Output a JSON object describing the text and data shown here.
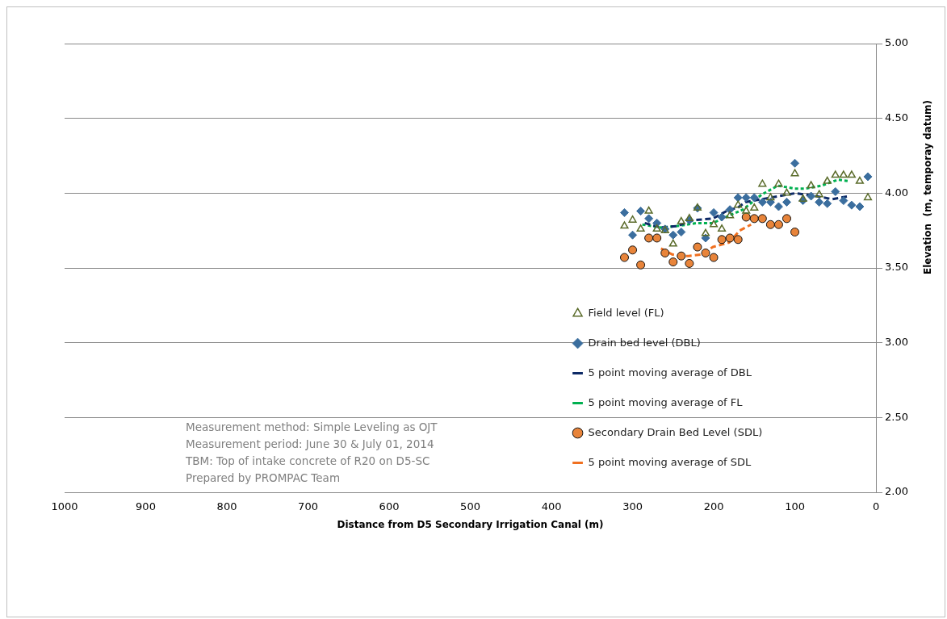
{
  "chart_data": {
    "type": "scatter",
    "xlabel": "Distance from D5 Secondary Irrigation Canal (m)",
    "ylabel": "Elevation  (m, temporay datum)",
    "xlim": [
      1000,
      0
    ],
    "xticks": [
      1000,
      900,
      800,
      700,
      600,
      500,
      400,
      300,
      200,
      100,
      0
    ],
    "ylim": [
      2,
      5
    ],
    "yticks": [
      {
        "value": 2,
        "label": "2.00"
      },
      {
        "value": 2.5,
        "label": "2.50"
      },
      {
        "value": 3,
        "label": "3.00"
      },
      {
        "value": 3.5,
        "label": "3.50"
      },
      {
        "value": 4,
        "label": "4.00"
      },
      {
        "value": 4.5,
        "label": "4.50"
      },
      {
        "value": 5,
        "label": "5.00"
      }
    ],
    "grid": "y",
    "legend": "bottom right",
    "annotations": [
      "Measurement method: Simple Leveling as OJT",
      "Measurement period: June 30 & July 01, 2014",
      "TBM: Top of intake concrete of R20 on D5-SC",
      "Prepared by PROMPAC Team"
    ],
    "series": [
      {
        "name": "Drain bed level (DBL)",
        "type": "scatter",
        "marker": "diamond",
        "color": "#3b6e9e",
        "x": [
          310,
          300,
          290,
          280,
          270,
          260,
          250,
          240,
          230,
          220,
          210,
          200,
          190,
          180,
          170,
          160,
          150,
          140,
          130,
          120,
          110,
          100,
          90,
          80,
          70,
          60,
          50,
          40,
          30,
          20,
          10
        ],
        "values": [
          3.87,
          3.72,
          3.88,
          3.83,
          3.8,
          3.76,
          3.72,
          3.74,
          3.82,
          3.9,
          3.7,
          3.87,
          3.84,
          3.89,
          3.97,
          3.97,
          3.97,
          3.94,
          3.94,
          3.91,
          3.94,
          4.2,
          3.95,
          3.98,
          3.94,
          3.93,
          4.01,
          3.95,
          3.92,
          3.91,
          4.11
        ]
      },
      {
        "name": "Field level (FL)",
        "type": "scatter",
        "marker": "triangle",
        "color": "#5a6b2a",
        "x": [
          310,
          300,
          290,
          280,
          270,
          260,
          250,
          240,
          230,
          220,
          210,
          200,
          190,
          180,
          170,
          160,
          150,
          140,
          130,
          120,
          110,
          100,
          90,
          80,
          70,
          60,
          50,
          40,
          30,
          20,
          10
        ],
        "values": [
          3.78,
          3.82,
          3.76,
          3.88,
          3.76,
          3.75,
          3.66,
          3.81,
          3.83,
          3.9,
          3.73,
          3.79,
          3.76,
          3.85,
          3.92,
          3.88,
          3.9,
          4.06,
          3.97,
          4.06,
          4.0,
          4.13,
          3.96,
          4.05,
          3.99,
          4.08,
          4.12,
          4.12,
          4.12,
          4.08,
          3.97
        ]
      },
      {
        "name": "5 point moving average of DBL",
        "type": "line",
        "line_style": "dashed",
        "color": "#0d2a66",
        "x": [
          285,
          265,
          245,
          225,
          201,
          181,
          171,
          161,
          120,
          99,
          74,
          54,
          33
        ],
        "values": [
          3.8,
          3.77,
          3.78,
          3.82,
          3.83,
          3.89,
          3.9,
          3.94,
          3.98,
          4.0,
          3.98,
          3.96,
          3.98
        ]
      },
      {
        "name": "5 point moving average of FL",
        "type": "line",
        "line_style": "dotted",
        "color": "#00b050",
        "x": [
          288,
          265,
          245,
          221,
          201,
          181,
          164,
          141,
          121,
          100,
          87,
          67,
          47,
          32
        ],
        "values": [
          3.79,
          3.77,
          3.78,
          3.8,
          3.8,
          3.85,
          3.89,
          3.99,
          4.05,
          4.03,
          4.03,
          4.05,
          4.09,
          4.08
        ]
      },
      {
        "name": "Secondary Drain Bed Level (SDL)",
        "type": "scatter",
        "marker": "circle",
        "color": "#e8843a",
        "x": [
          310,
          300,
          290,
          280,
          270,
          260,
          250,
          240,
          230,
          220,
          210,
          200,
          190,
          180,
          170,
          160,
          150,
          140,
          130,
          120,
          110,
          100
        ],
        "values": [
          3.57,
          3.62,
          3.52,
          3.7,
          3.7,
          3.6,
          3.54,
          3.58,
          3.53,
          3.64,
          3.6,
          3.57,
          3.69,
          3.7,
          3.69,
          3.84,
          3.83,
          3.83,
          3.79,
          3.79,
          3.83,
          3.74
        ]
      },
      {
        "name": "5 point moving average of SDL",
        "type": "line",
        "line_style": "dashed",
        "color": "#f07020",
        "x": [
          265,
          251,
          241,
          231,
          215,
          201,
          181,
          168,
          154
        ],
        "values": [
          3.63,
          3.59,
          3.58,
          3.58,
          3.59,
          3.64,
          3.67,
          3.75,
          3.79
        ]
      }
    ]
  }
}
